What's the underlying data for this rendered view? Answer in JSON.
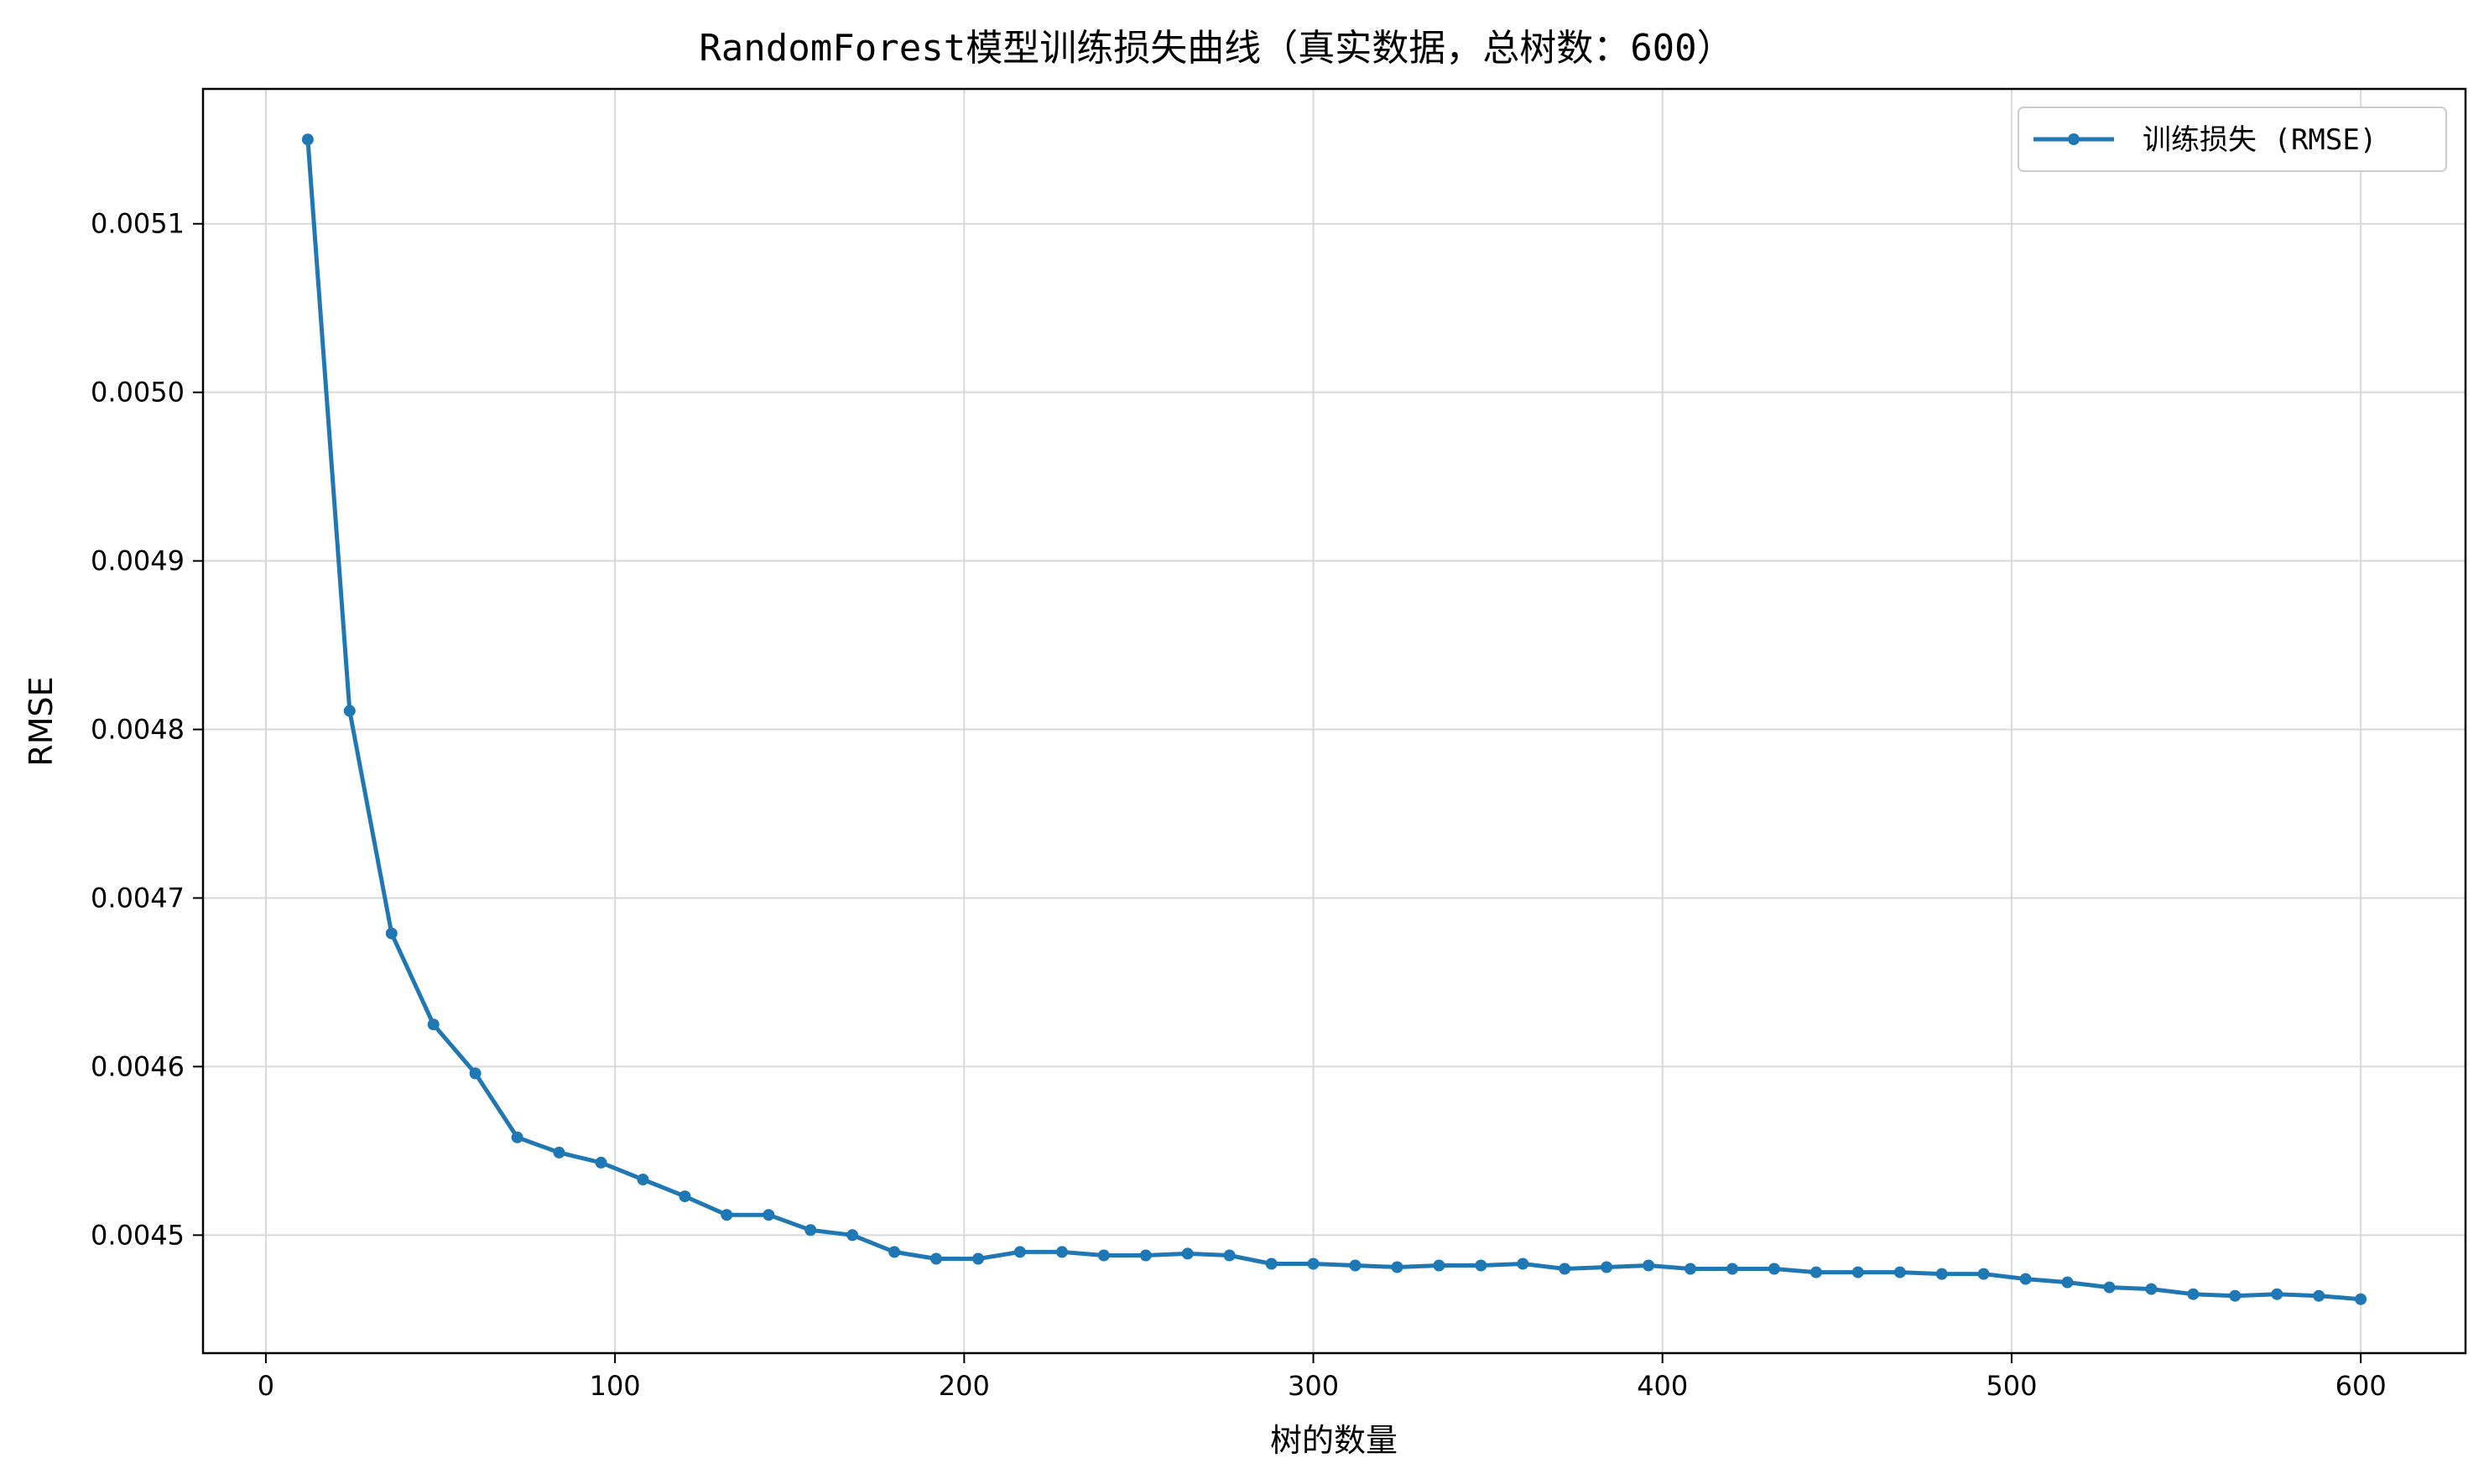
{
  "chart_data": {
    "type": "line",
    "title": "RandomForest模型训练损失曲线（真实数据，总树数：600）",
    "xlabel": "树的数量",
    "ylabel": "RMSE",
    "xlim": [
      -18,
      630
    ],
    "ylim": [
      0.00443,
      0.00518
    ],
    "x_ticks": [
      0,
      100,
      200,
      300,
      400,
      500,
      600
    ],
    "x_tick_labels": [
      "0",
      "100",
      "200",
      "300",
      "400",
      "500",
      "600"
    ],
    "y_ticks": [
      0.0045,
      0.0046,
      0.0047,
      0.0048,
      0.0049,
      0.005,
      0.0051
    ],
    "y_tick_labels": [
      "0.0045",
      "0.0046",
      "0.0047",
      "0.0048",
      "0.0049",
      "0.0050",
      "0.0051"
    ],
    "grid": true,
    "legend_position": "top-right",
    "series": [
      {
        "name": "训练损失 (RMSE)",
        "color": "#1f77b4",
        "marker": "circle",
        "x": [
          12,
          24,
          36,
          48,
          60,
          72,
          84,
          96,
          108,
          120,
          132,
          144,
          156,
          168,
          180,
          192,
          204,
          216,
          228,
          240,
          252,
          264,
          276,
          288,
          300,
          312,
          324,
          336,
          348,
          360,
          372,
          384,
          396,
          408,
          420,
          432,
          444,
          456,
          468,
          480,
          492,
          504,
          516,
          528,
          540,
          552,
          564,
          576,
          588,
          600
        ],
        "y": [
          0.00515,
          0.004811,
          0.004679,
          0.004625,
          0.004596,
          0.004558,
          0.004549,
          0.004543,
          0.004533,
          0.004523,
          0.004512,
          0.004512,
          0.004503,
          0.0045,
          0.00449,
          0.004486,
          0.004486,
          0.00449,
          0.00449,
          0.004488,
          0.004488,
          0.004489,
          0.004488,
          0.004483,
          0.004483,
          0.004482,
          0.004481,
          0.004482,
          0.004482,
          0.004483,
          0.00448,
          0.004481,
          0.004482,
          0.00448,
          0.00448,
          0.00448,
          0.004478,
          0.004478,
          0.004478,
          0.004477,
          0.004477,
          0.004474,
          0.004472,
          0.004469,
          0.004468,
          0.004465,
          0.004464,
          0.004465,
          0.004464,
          0.004462
        ]
      }
    ]
  }
}
